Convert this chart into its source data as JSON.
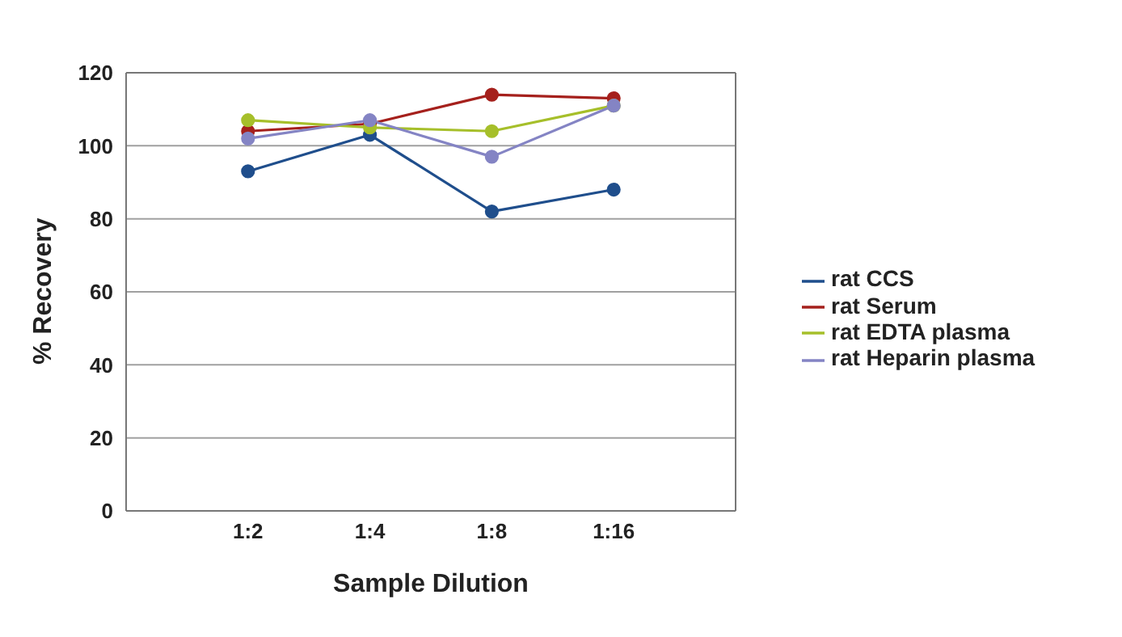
{
  "chart_data": {
    "type": "line",
    "xlabel": "Sample Dilution",
    "ylabel": "% Recovery",
    "categories": [
      "1:2",
      "1:4",
      "1:8",
      "1:16"
    ],
    "series": [
      {
        "name": "rat CCS",
        "color": "#1f4e8c",
        "values": [
          93,
          103,
          82,
          88
        ]
      },
      {
        "name": "rat Serum",
        "color": "#a5201c",
        "values": [
          104,
          106,
          114,
          113
        ]
      },
      {
        "name": "rat EDTA plasma",
        "color": "#a6bf2a",
        "values": [
          107,
          105,
          104,
          111
        ]
      },
      {
        "name": "rat Heparin plasma",
        "color": "#8484c4",
        "values": [
          102,
          107,
          97,
          111
        ]
      }
    ],
    "ylim": [
      0,
      120
    ],
    "yticks": [
      0,
      20,
      40,
      60,
      80,
      100,
      120
    ],
    "grid": "y",
    "legend": "right",
    "marker": "circle",
    "line_style": "solid"
  }
}
